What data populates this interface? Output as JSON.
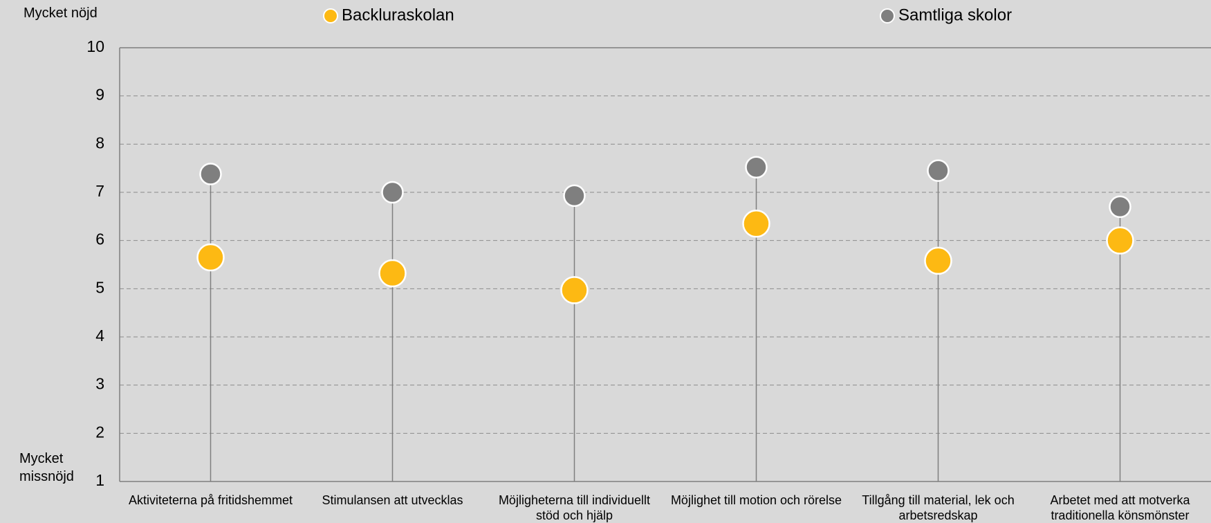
{
  "chart_data": {
    "type": "dot",
    "categories": [
      "Aktiviteterna på fritidshemmet",
      "Stimulansen att utvecklas",
      "Möjligheterna till individuellt stöd och hjälp",
      "Möjlighet till motion och rörelse",
      "Tillgång till material, lek och arbetsredskap",
      "Arbetet med att motverka traditionella könsmönster"
    ],
    "series": [
      {
        "name": "Backluraskolan",
        "color": "#fdb913",
        "values": [
          5.65,
          5.32,
          4.97,
          6.35,
          5.58,
          6.0
        ]
      },
      {
        "name": "Samtliga skolor",
        "color": "#7f7f7f",
        "values": [
          7.38,
          7.0,
          6.93,
          7.52,
          7.45,
          6.7
        ]
      }
    ],
    "ylim": [
      1,
      10
    ],
    "yticks": [
      1,
      2,
      3,
      4,
      5,
      6,
      7,
      8,
      9,
      10
    ],
    "grid": true,
    "y_top_label": "Mycket nöjd",
    "y_bottom_label": "Mycket missnöjd"
  }
}
